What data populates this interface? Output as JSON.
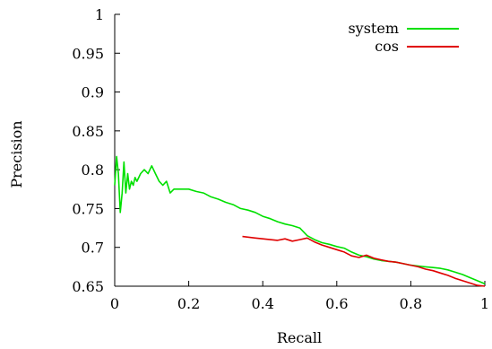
{
  "chart_data": {
    "type": "line",
    "title": "",
    "xlabel": "Recall",
    "ylabel": "Precision",
    "xlim": [
      0,
      1
    ],
    "ylim": [
      0.65,
      1
    ],
    "xticks": [
      0,
      0.2,
      0.4,
      0.6,
      0.8,
      1
    ],
    "xtick_labels": [
      "0",
      "0.2",
      "0.4",
      "0.6",
      "0.8",
      "1"
    ],
    "yticks": [
      0.65,
      0.7,
      0.75,
      0.8,
      0.85,
      0.9,
      0.95,
      1
    ],
    "ytick_labels": [
      "0.65",
      "0.7",
      "0.75",
      "0.8",
      "0.85",
      "0.9",
      "0.95",
      "1"
    ],
    "grid": false,
    "legend_position": "top-right",
    "series": [
      {
        "name": "system",
        "color": "#00e000",
        "x": [
          0.0,
          0.005,
          0.01,
          0.015,
          0.02,
          0.025,
          0.03,
          0.035,
          0.04,
          0.045,
          0.05,
          0.055,
          0.06,
          0.07,
          0.08,
          0.09,
          0.1,
          0.11,
          0.12,
          0.13,
          0.14,
          0.15,
          0.16,
          0.18,
          0.2,
          0.22,
          0.24,
          0.26,
          0.28,
          0.3,
          0.32,
          0.34,
          0.36,
          0.38,
          0.4,
          0.42,
          0.44,
          0.46,
          0.48,
          0.5,
          0.52,
          0.54,
          0.56,
          0.58,
          0.6,
          0.62,
          0.64,
          0.66,
          0.68,
          0.7,
          0.72,
          0.74,
          0.76,
          0.78,
          0.8,
          0.82,
          0.84,
          0.86,
          0.88,
          0.9,
          0.92,
          0.94,
          0.96,
          0.98,
          1.0
        ],
        "y": [
          0.78,
          0.817,
          0.795,
          0.745,
          0.77,
          0.81,
          0.77,
          0.795,
          0.775,
          0.785,
          0.78,
          0.79,
          0.785,
          0.795,
          0.8,
          0.795,
          0.805,
          0.795,
          0.785,
          0.78,
          0.785,
          0.77,
          0.775,
          0.775,
          0.775,
          0.772,
          0.77,
          0.765,
          0.762,
          0.758,
          0.755,
          0.75,
          0.748,
          0.745,
          0.74,
          0.737,
          0.733,
          0.73,
          0.728,
          0.725,
          0.715,
          0.71,
          0.706,
          0.704,
          0.701,
          0.699,
          0.694,
          0.69,
          0.688,
          0.685,
          0.683,
          0.682,
          0.681,
          0.679,
          0.677,
          0.676,
          0.675,
          0.674,
          0.673,
          0.671,
          0.668,
          0.665,
          0.661,
          0.657,
          0.653
        ]
      },
      {
        "name": "cos",
        "color": "#e00000",
        "x": [
          0.345,
          0.38,
          0.42,
          0.44,
          0.46,
          0.48,
          0.5,
          0.52,
          0.54,
          0.56,
          0.58,
          0.6,
          0.62,
          0.64,
          0.66,
          0.68,
          0.7,
          0.72,
          0.74,
          0.76,
          0.78,
          0.8,
          0.82,
          0.84,
          0.86,
          0.88,
          0.9,
          0.92,
          0.94,
          0.96,
          0.98,
          1.0
        ],
        "y": [
          0.714,
          0.712,
          0.71,
          0.709,
          0.711,
          0.708,
          0.71,
          0.712,
          0.707,
          0.703,
          0.7,
          0.697,
          0.694,
          0.689,
          0.687,
          0.69,
          0.686,
          0.684,
          0.682,
          0.681,
          0.679,
          0.677,
          0.675,
          0.672,
          0.67,
          0.667,
          0.664,
          0.66,
          0.657,
          0.654,
          0.651,
          0.65
        ]
      }
    ]
  }
}
